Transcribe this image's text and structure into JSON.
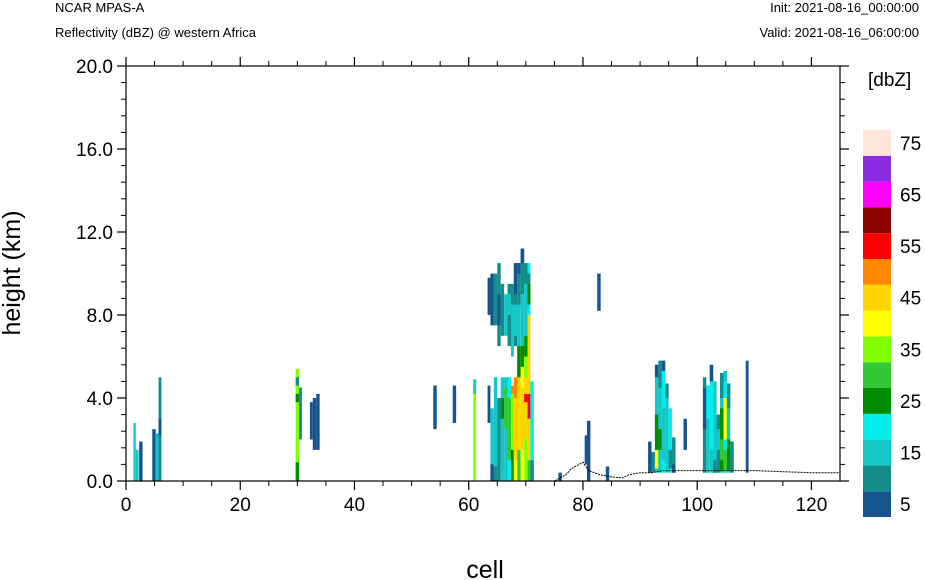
{
  "header": {
    "model": "NCAR MPAS-A",
    "field": "Reflectivity (dBZ) @ western Africa",
    "init": "Init: 2021-08-16_00:00:00",
    "valid": "Valid: 2021-08-16_06:00:00"
  },
  "chart_data": {
    "type": "heatmap",
    "title": "Reflectivity (dBZ) @ western Africa",
    "xlabel": "cell",
    "ylabel": "height (km)",
    "xlim": [
      0,
      125
    ],
    "ylim": [
      0,
      20
    ],
    "xticks": [
      "0",
      "20",
      "40",
      "60",
      "80",
      "100",
      "120"
    ],
    "yticks": [
      "0.0",
      "4.0",
      "8.0",
      "12.0",
      "16.0",
      "20.0"
    ],
    "colorbar": {
      "unit": "[dbZ]",
      "levels": [
        5,
        10,
        15,
        20,
        25,
        30,
        35,
        40,
        45,
        50,
        55,
        60,
        65,
        70,
        75
      ],
      "labels": [
        "5",
        "15",
        "25",
        "35",
        "45",
        "55",
        "65",
        "75"
      ],
      "colors": [
        "#16548e",
        "#138c8a",
        "#13c7c6",
        "#00eeee",
        "#008b00",
        "#34c934",
        "#84ff00",
        "#ffff00",
        "#ffd400",
        "#ff8700",
        "#ff0000",
        "#8b0000",
        "#ff00ff",
        "#8a2ce2",
        "#ffe4da"
      ]
    },
    "terrain": [
      [
        0,
        0
      ],
      [
        75,
        0
      ],
      [
        77,
        0.3
      ],
      [
        78,
        0.6
      ],
      [
        80,
        0.9
      ],
      [
        81,
        0.5
      ],
      [
        83,
        0.3
      ],
      [
        85,
        0.2
      ],
      [
        87,
        0.15
      ],
      [
        88,
        0.3
      ],
      [
        90,
        0.4
      ],
      [
        92,
        0.4
      ],
      [
        94,
        0.5
      ],
      [
        100,
        0.5
      ],
      [
        110,
        0.5
      ],
      [
        115,
        0.45
      ],
      [
        120,
        0.4
      ],
      [
        125,
        0.4
      ]
    ],
    "cells": [
      [
        1.3,
        1.7,
        0,
        2.8,
        15
      ],
      [
        1.7,
        2.2,
        0,
        1.5,
        15
      ],
      [
        2.3,
        2.9,
        0,
        1.9,
        5
      ],
      [
        4.6,
        5.2,
        0,
        2.5,
        5
      ],
      [
        5.2,
        5.7,
        0,
        2.3,
        15
      ],
      [
        5.7,
        6.2,
        0,
        5.0,
        10
      ],
      [
        5.7,
        6.2,
        2.2,
        3.0,
        5
      ],
      [
        29.7,
        30.3,
        0,
        5.4,
        35
      ],
      [
        29.7,
        30.3,
        0,
        0.9,
        25
      ],
      [
        29.7,
        30.3,
        4.6,
        5.0,
        10
      ],
      [
        29.7,
        30.3,
        3.8,
        4.2,
        25
      ],
      [
        30.3,
        30.8,
        2.0,
        4.5,
        10
      ],
      [
        32.2,
        32.7,
        2.0,
        3.8,
        5
      ],
      [
        32.7,
        33.3,
        1.5,
        4.0,
        5
      ],
      [
        33.3,
        33.9,
        1.5,
        4.2,
        5
      ],
      [
        53.8,
        54.4,
        2.5,
        4.6,
        5
      ],
      [
        57.2,
        57.8,
        2.8,
        4.6,
        5
      ],
      [
        60.8,
        61.3,
        0,
        4.9,
        35
      ],
      [
        60.8,
        61.3,
        4.2,
        4.9,
        15
      ],
      [
        63.3,
        63.8,
        2.8,
        4.6,
        5
      ],
      [
        63.8,
        64.4,
        0,
        3.5,
        15
      ],
      [
        63.8,
        64.4,
        0,
        0.8,
        5
      ],
      [
        64.4,
        65.0,
        0,
        5.0,
        15
      ],
      [
        64.4,
        65.0,
        0,
        0.7,
        10
      ],
      [
        65.0,
        65.6,
        0,
        4.0,
        10
      ],
      [
        65.6,
        66.2,
        0,
        5.0,
        15
      ],
      [
        65.6,
        66.2,
        3.0,
        4.0,
        25
      ],
      [
        66.2,
        66.8,
        0,
        5.0,
        15
      ],
      [
        66.2,
        66.8,
        2.5,
        4.5,
        30
      ],
      [
        66.8,
        67.4,
        0,
        5.0,
        20
      ],
      [
        66.8,
        67.4,
        1.0,
        4.0,
        30
      ],
      [
        67.4,
        67.9,
        0,
        4.6,
        25
      ],
      [
        67.4,
        67.9,
        1.5,
        4.6,
        35
      ],
      [
        67.4,
        67.9,
        4.2,
        4.6,
        50
      ],
      [
        67.9,
        68.5,
        0,
        5.0,
        40
      ],
      [
        67.9,
        68.5,
        1.0,
        4.6,
        45
      ],
      [
        67.9,
        68.5,
        4.0,
        5.0,
        50
      ],
      [
        68.5,
        69.1,
        0,
        6.5,
        30
      ],
      [
        68.5,
        69.1,
        1.5,
        5.0,
        45
      ],
      [
        68.5,
        69.1,
        5.0,
        6.5,
        25
      ],
      [
        69.1,
        69.7,
        0,
        6.5,
        40
      ],
      [
        69.1,
        69.7,
        1.5,
        4.5,
        45
      ],
      [
        69.1,
        69.7,
        5.5,
        6.5,
        25
      ],
      [
        69.7,
        70.3,
        0,
        7.0,
        35
      ],
      [
        69.7,
        70.3,
        2.0,
        5.0,
        45
      ],
      [
        69.7,
        70.3,
        3.8,
        4.2,
        55
      ],
      [
        69.7,
        70.3,
        6.0,
        7.0,
        25
      ],
      [
        70.3,
        70.8,
        0,
        8.0,
        45
      ],
      [
        70.3,
        70.8,
        0,
        1.0,
        30
      ],
      [
        70.3,
        70.8,
        3.0,
        4.2,
        55
      ],
      [
        70.3,
        70.8,
        4.2,
        5.0,
        45
      ],
      [
        70.8,
        71.4,
        0,
        4.8,
        20
      ],
      [
        70.8,
        71.4,
        0,
        1.0,
        10
      ],
      [
        63.3,
        63.8,
        8.0,
        9.8,
        5
      ],
      [
        63.8,
        64.4,
        7.5,
        10.0,
        5
      ],
      [
        64.4,
        65.0,
        7.5,
        10.0,
        10
      ],
      [
        65.0,
        65.6,
        6.5,
        10.5,
        10
      ],
      [
        65.0,
        65.6,
        7.5,
        9.0,
        5
      ],
      [
        65.6,
        66.2,
        7.0,
        9.5,
        10
      ],
      [
        66.2,
        66.8,
        7.0,
        9.0,
        15
      ],
      [
        66.8,
        67.4,
        6.5,
        9.5,
        10
      ],
      [
        66.8,
        67.4,
        8.0,
        9.0,
        15
      ],
      [
        67.4,
        67.9,
        6.0,
        8.5,
        15
      ],
      [
        67.4,
        67.9,
        8.5,
        9.5,
        10
      ],
      [
        67.9,
        68.5,
        6.5,
        10.5,
        10
      ],
      [
        67.9,
        68.5,
        7.0,
        8.5,
        15
      ],
      [
        67.9,
        68.5,
        9.0,
        10.5,
        5
      ],
      [
        68.5,
        69.1,
        6.5,
        10.0,
        15
      ],
      [
        68.5,
        69.1,
        8.5,
        10.5,
        10
      ],
      [
        68.5,
        69.1,
        10.0,
        10.5,
        5
      ],
      [
        69.1,
        69.7,
        6.5,
        11.2,
        15
      ],
      [
        69.1,
        69.7,
        9.0,
        11.2,
        10
      ],
      [
        69.1,
        69.7,
        10.5,
        11.2,
        5
      ],
      [
        69.7,
        70.3,
        7.0,
        10.5,
        15
      ],
      [
        69.7,
        70.3,
        9.5,
        10.5,
        10
      ],
      [
        70.3,
        70.8,
        8.0,
        10.5,
        20
      ],
      [
        70.3,
        70.8,
        8.5,
        9.5,
        25
      ],
      [
        70.3,
        70.8,
        9.5,
        10.0,
        10
      ],
      [
        75.7,
        76.3,
        0,
        0.4,
        5
      ],
      [
        80.7,
        81.3,
        0,
        2.9,
        5
      ],
      [
        80.3,
        80.7,
        0.8,
        2.2,
        5
      ],
      [
        82.5,
        83.1,
        8.2,
        10.0,
        5
      ],
      [
        84.0,
        84.6,
        0,
        0.7,
        5
      ],
      [
        91.4,
        92.0,
        0.4,
        1.9,
        5
      ],
      [
        92.0,
        92.6,
        0.4,
        1.4,
        10
      ],
      [
        92.6,
        93.2,
        0.4,
        5.6,
        15
      ],
      [
        92.6,
        93.2,
        1.0,
        3.2,
        25
      ],
      [
        92.6,
        93.2,
        0.6,
        1.5,
        40
      ],
      [
        92.6,
        93.2,
        5.0,
        5.6,
        5
      ],
      [
        93.2,
        93.8,
        0.4,
        5.8,
        15
      ],
      [
        93.2,
        93.8,
        1.5,
        2.5,
        25
      ],
      [
        93.2,
        93.8,
        4.5,
        5.8,
        10
      ],
      [
        93.8,
        94.4,
        0.4,
        5.8,
        20
      ],
      [
        93.8,
        94.4,
        1.0,
        3.5,
        15
      ],
      [
        93.8,
        94.4,
        5.3,
        5.8,
        5
      ],
      [
        94.4,
        95.0,
        0.4,
        4.7,
        15
      ],
      [
        94.4,
        95.0,
        4.0,
        4.7,
        10
      ],
      [
        95.0,
        95.6,
        0.4,
        3.5,
        20
      ],
      [
        95.0,
        95.6,
        0.6,
        1.5,
        10
      ],
      [
        95.6,
        96.2,
        0.4,
        2.1,
        10
      ],
      [
        95.6,
        96.2,
        0.4,
        0.8,
        5
      ],
      [
        97.6,
        98.2,
        1.5,
        3.0,
        5
      ],
      [
        101.0,
        101.6,
        0.4,
        5.0,
        10
      ],
      [
        101.0,
        101.6,
        2.5,
        4.5,
        5
      ],
      [
        101.6,
        102.2,
        0.4,
        4.6,
        15
      ],
      [
        101.6,
        102.2,
        3.0,
        4.6,
        20
      ],
      [
        102.2,
        102.8,
        0.4,
        5.6,
        20
      ],
      [
        102.2,
        102.8,
        0.5,
        1.5,
        15
      ],
      [
        102.2,
        102.8,
        4.8,
        5.6,
        5
      ],
      [
        102.8,
        103.4,
        0.4,
        4.8,
        15
      ],
      [
        102.8,
        103.4,
        0.4,
        1.0,
        10
      ],
      [
        103.4,
        104.0,
        0.4,
        3.2,
        10
      ],
      [
        103.4,
        104.0,
        1.5,
        2.5,
        15
      ],
      [
        104.0,
        104.6,
        0.4,
        5.2,
        15
      ],
      [
        104.0,
        104.6,
        0.5,
        3.5,
        25
      ],
      [
        104.0,
        104.6,
        1.0,
        2.0,
        30
      ],
      [
        104.0,
        104.6,
        4.0,
        5.2,
        10
      ],
      [
        104.6,
        105.2,
        0.4,
        5.3,
        20
      ],
      [
        104.6,
        105.2,
        2.0,
        4.0,
        40
      ],
      [
        104.6,
        105.2,
        0.5,
        1.5,
        30
      ],
      [
        104.6,
        105.2,
        4.8,
        5.3,
        15
      ],
      [
        105.2,
        105.8,
        0.4,
        4.7,
        15
      ],
      [
        105.2,
        105.8,
        0.5,
        2.0,
        25
      ],
      [
        105.2,
        105.8,
        3.5,
        4.7,
        10
      ],
      [
        105.8,
        106.4,
        0.4,
        1.9,
        10
      ],
      [
        108.5,
        109.0,
        0.4,
        5.8,
        5
      ]
    ]
  }
}
